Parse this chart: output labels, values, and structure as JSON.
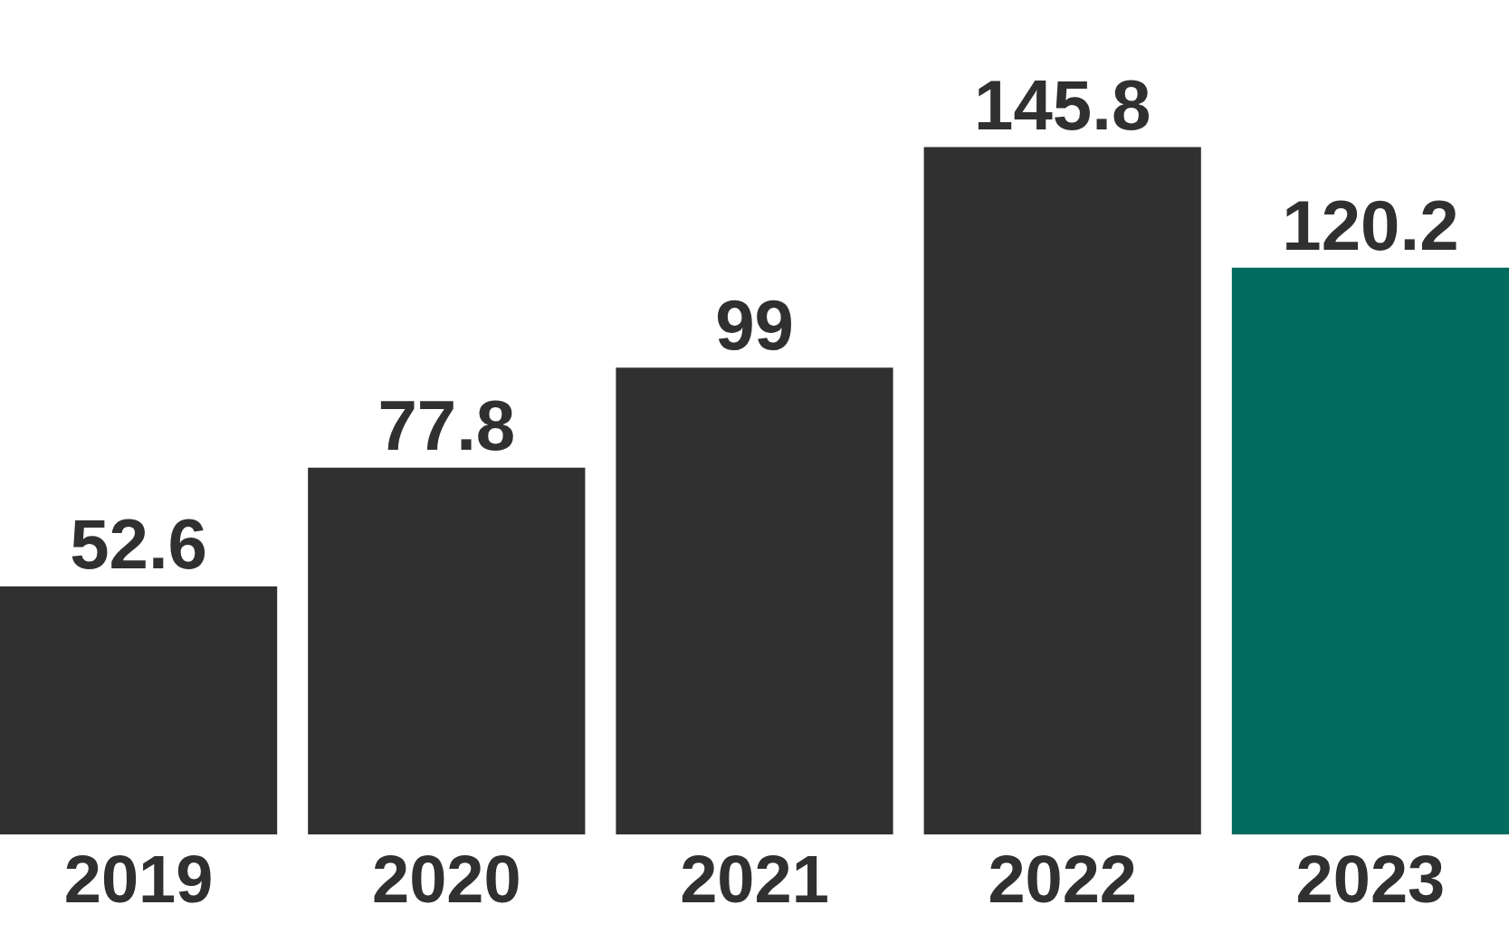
{
  "chart_data": {
    "type": "bar",
    "categories": [
      "2019",
      "2020",
      "2021",
      "2022",
      "2023"
    ],
    "values": [
      52.6,
      77.8,
      99,
      145.8,
      120.2
    ],
    "colors": [
      "#303030",
      "#303030",
      "#303030",
      "#303030",
      "#006b5f"
    ],
    "ylim": [
      0,
      177
    ],
    "data_labels": true
  }
}
